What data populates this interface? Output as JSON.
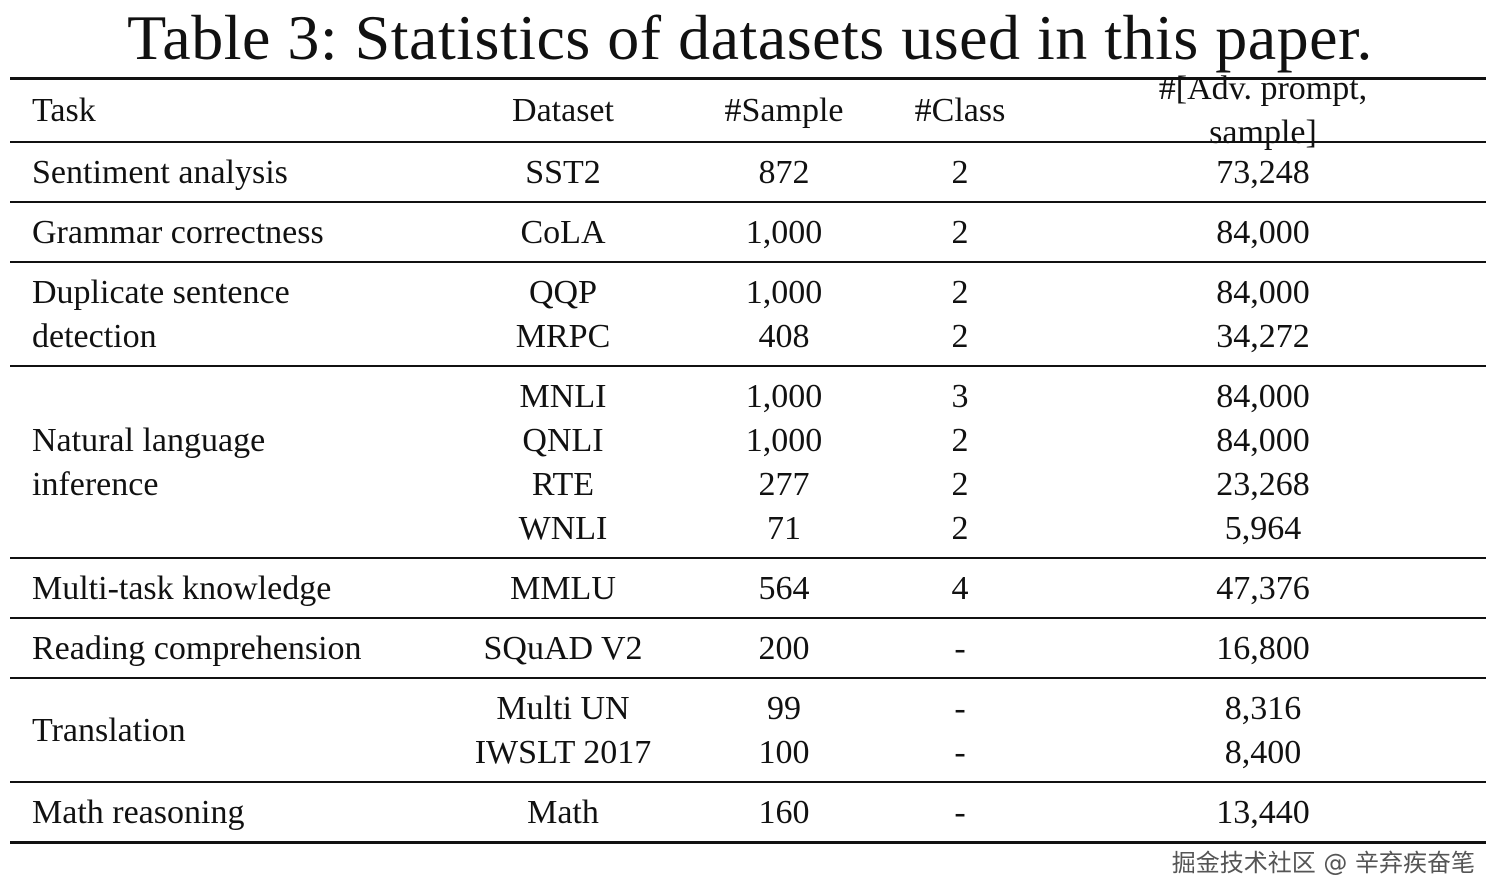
{
  "title": "Table 3: Statistics of datasets used in this paper.",
  "header": {
    "task": "Task",
    "dataset": "Dataset",
    "sample": "#Sample",
    "class": "#Class",
    "adv": "#[Adv. prompt, sample]"
  },
  "groups": [
    {
      "task": [
        "Sentiment analysis"
      ],
      "rows": [
        {
          "dataset": "SST2",
          "sample": "872",
          "class": "2",
          "adv": "73,248"
        }
      ]
    },
    {
      "task": [
        "Grammar correctness"
      ],
      "rows": [
        {
          "dataset": "CoLA",
          "sample": "1,000",
          "class": "2",
          "adv": "84,000"
        }
      ]
    },
    {
      "task": [
        "Duplicate sentence",
        "detection"
      ],
      "rows": [
        {
          "dataset": "QQP",
          "sample": "1,000",
          "class": "2",
          "adv": "84,000"
        },
        {
          "dataset": "MRPC",
          "sample": "408",
          "class": "2",
          "adv": "34,272"
        }
      ]
    },
    {
      "task": [
        "Natural language",
        "inference"
      ],
      "rows": [
        {
          "dataset": "MNLI",
          "sample": "1,000",
          "class": "3",
          "adv": "84,000"
        },
        {
          "dataset": "QNLI",
          "sample": "1,000",
          "class": "2",
          "adv": "84,000"
        },
        {
          "dataset": "RTE",
          "sample": "277",
          "class": "2",
          "adv": "23,268"
        },
        {
          "dataset": "WNLI",
          "sample": "71",
          "class": "2",
          "adv": "5,964"
        }
      ]
    },
    {
      "task": [
        "Multi-task knowledge"
      ],
      "rows": [
        {
          "dataset": "MMLU",
          "sample": "564",
          "class": "4",
          "adv": "47,376"
        }
      ]
    },
    {
      "task": [
        "Reading comprehension"
      ],
      "rows": [
        {
          "dataset": "SQuAD V2",
          "sample": "200",
          "class": "-",
          "adv": "16,800"
        }
      ]
    },
    {
      "task": [
        "Translation"
      ],
      "rows": [
        {
          "dataset": "Multi UN",
          "sample": "99",
          "class": "-",
          "adv": "8,316"
        },
        {
          "dataset": "IWSLT 2017",
          "sample": "100",
          "class": "-",
          "adv": "8,400"
        }
      ]
    },
    {
      "task": [
        "Math reasoning"
      ],
      "rows": [
        {
          "dataset": "Math",
          "sample": "160",
          "class": "-",
          "adv": "13,440"
        }
      ]
    }
  ],
  "watermark": "掘金技术社区 @ 辛弃疾奋笔"
}
